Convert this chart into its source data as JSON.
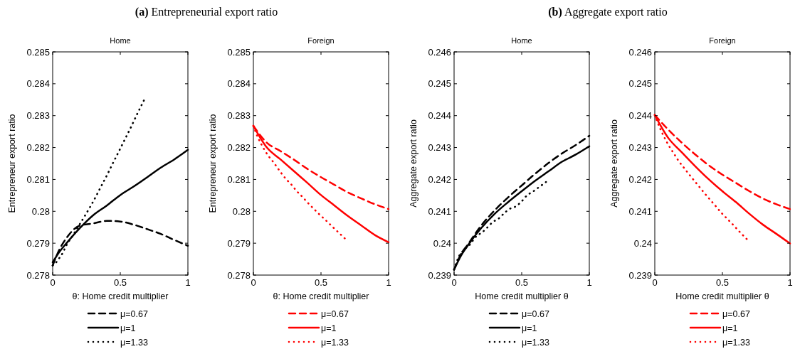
{
  "chart_data": [
    {
      "type": "line",
      "title": "Home",
      "annotations": [
        "(a) Entrepreneurial export ratio"
      ],
      "xlabel": "θ: Home credit multiplier",
      "ylabel": "Entrepreneur export ratio",
      "xlim": [
        0,
        1
      ],
      "xticks": [
        0,
        0.5,
        1
      ],
      "ylim": [
        0.278,
        0.285
      ],
      "yticks": [
        0.278,
        0.279,
        0.28,
        0.281,
        0.282,
        0.283,
        0.284,
        0.285
      ],
      "grid": false,
      "legend": "bottom",
      "series": [
        {
          "name": "μ=0.67",
          "color": "#000000",
          "line_style": "dashed",
          "x": [
            0,
            0.05,
            0.1,
            0.2,
            0.3,
            0.4,
            0.5,
            0.6,
            0.7,
            0.8,
            0.9,
            1
          ],
          "values": [
            0.2783,
            0.2788,
            0.27915,
            0.27955,
            0.27962,
            0.2797,
            0.27968,
            0.27958,
            0.27944,
            0.27929,
            0.2791,
            0.27892
          ]
        },
        {
          "name": "μ=1",
          "color": "#000000",
          "line_style": "solid",
          "x": [
            0,
            0.05,
            0.1,
            0.2,
            0.3,
            0.4,
            0.5,
            0.6,
            0.7,
            0.8,
            0.9,
            1
          ],
          "values": [
            0.2784,
            0.27873,
            0.27899,
            0.27947,
            0.27988,
            0.28018,
            0.28051,
            0.28078,
            0.28107,
            0.28137,
            0.28163,
            0.28193
          ]
        },
        {
          "name": "μ=1.33",
          "color": "#000000",
          "line_style": "dotted",
          "x": [
            0,
            0.024,
            0.05,
            0.075,
            0.1,
            0.15,
            0.198,
            0.241,
            0.28,
            0.319,
            0.358,
            0.4,
            0.442,
            0.486,
            0.532,
            0.579,
            0.626,
            0.675
          ],
          "values": [
            0.2783,
            0.27839,
            0.27854,
            0.2787,
            0.27892,
            0.27925,
            0.27958,
            0.27988,
            0.28016,
            0.28046,
            0.28078,
            0.28112,
            0.28148,
            0.28185,
            0.28224,
            0.28264,
            0.28306,
            0.28348
          ]
        }
      ]
    },
    {
      "type": "line",
      "title": "Foreign",
      "xlabel": "θ: Home credit multiplier",
      "ylabel": "Entrepreneur export ratio",
      "xlim": [
        0,
        1
      ],
      "xticks": [
        0,
        0.5,
        1
      ],
      "ylim": [
        0.278,
        0.285
      ],
      "yticks": [
        0.278,
        0.279,
        0.28,
        0.281,
        0.282,
        0.283,
        0.284,
        0.285
      ],
      "grid": false,
      "legend": "bottom",
      "series": [
        {
          "name": "μ=0.67",
          "color": "#ff0000",
          "line_style": "dashed",
          "x": [
            0,
            0.1,
            0.2,
            0.3,
            0.4,
            0.5,
            0.6,
            0.7,
            0.8,
            0.9,
            1
          ],
          "values": [
            0.28268,
            0.28215,
            0.28189,
            0.28162,
            0.28133,
            0.28107,
            0.28083,
            0.28059,
            0.2804,
            0.28022,
            0.28007
          ]
        },
        {
          "name": "μ=1",
          "color": "#ff0000",
          "line_style": "solid",
          "x": [
            0,
            0.1,
            0.2,
            0.3,
            0.4,
            0.5,
            0.6,
            0.7,
            0.8,
            0.9,
            1
          ],
          "values": [
            0.28268,
            0.282,
            0.28163,
            0.28126,
            0.28089,
            0.28051,
            0.28018,
            0.27985,
            0.27955,
            0.27925,
            0.27903
          ]
        },
        {
          "name": "μ=1.33",
          "color": "#ff0000",
          "line_style": "dotted",
          "x": [
            0,
            0.032,
            0.058,
            0.109,
            0.143,
            0.174,
            0.206,
            0.242,
            0.283,
            0.319,
            0.361,
            0.402,
            0.446,
            0.489,
            0.535,
            0.581,
            0.629,
            0.676
          ],
          "values": [
            0.28268,
            0.28233,
            0.28211,
            0.28175,
            0.28157,
            0.28139,
            0.2812,
            0.28101,
            0.28083,
            0.28064,
            0.28046,
            0.28027,
            0.28008,
            0.2799,
            0.27972,
            0.27953,
            0.27934,
            0.27915
          ]
        }
      ]
    },
    {
      "type": "line",
      "title": "Home",
      "annotations": [
        "(b) Aggregate export ratio"
      ],
      "xlabel": "Home credit multiplier θ",
      "ylabel": "Aggregate export ratio",
      "xlim": [
        0,
        1
      ],
      "xticks": [
        0,
        0.5,
        1
      ],
      "ylim": [
        0.239,
        0.246
      ],
      "yticks": [
        0.239,
        0.24,
        0.241,
        0.242,
        0.243,
        0.244,
        0.245,
        0.246
      ],
      "grid": false,
      "legend": "bottom",
      "series": [
        {
          "name": "μ=0.67",
          "color": "#000000",
          "line_style": "dashed",
          "x": [
            0,
            0.05,
            0.1,
            0.2,
            0.3,
            0.4,
            0.5,
            0.6,
            0.7,
            0.8,
            0.9,
            1
          ],
          "values": [
            0.23917,
            0.23965,
            0.23995,
            0.24055,
            0.24103,
            0.24144,
            0.24181,
            0.24218,
            0.24252,
            0.24282,
            0.24308,
            0.24337
          ]
        },
        {
          "name": "μ=1",
          "color": "#000000",
          "line_style": "solid",
          "x": [
            0,
            0.05,
            0.1,
            0.2,
            0.3,
            0.4,
            0.5,
            0.6,
            0.7,
            0.8,
            0.9,
            1
          ],
          "values": [
            0.23917,
            0.2396,
            0.23992,
            0.24047,
            0.24092,
            0.24129,
            0.24163,
            0.24196,
            0.24226,
            0.24256,
            0.24278,
            0.24304
          ]
        },
        {
          "name": "μ=1.33",
          "color": "#000000",
          "line_style": "dotted",
          "x": [
            0,
            0.035,
            0.076,
            0.116,
            0.156,
            0.213,
            0.25,
            0.285,
            0.329,
            0.366,
            0.408,
            0.45,
            0.495,
            0.539,
            0.587,
            0.635,
            0.68
          ],
          "values": [
            0.23917,
            0.23958,
            0.2398,
            0.23995,
            0.24018,
            0.24036,
            0.24051,
            0.24066,
            0.24077,
            0.24092,
            0.24107,
            0.24114,
            0.24129,
            0.2415,
            0.24163,
            0.24178,
            0.24192
          ]
        }
      ]
    },
    {
      "type": "line",
      "title": "Foreign",
      "xlabel": "Home credit multiplier θ",
      "ylabel": "Aggregate export ratio",
      "xlim": [
        0,
        1
      ],
      "xticks": [
        0,
        0.5,
        1
      ],
      "ylim": [
        0.239,
        0.246
      ],
      "yticks": [
        0.239,
        0.24,
        0.241,
        0.242,
        0.243,
        0.244,
        0.245,
        0.246
      ],
      "grid": false,
      "legend": "bottom",
      "series": [
        {
          "name": "μ=0.67",
          "color": "#ff0000",
          "line_style": "dashed",
          "x": [
            0,
            0.1,
            0.2,
            0.3,
            0.4,
            0.5,
            0.6,
            0.7,
            0.8,
            0.9,
            1
          ],
          "values": [
            0.24402,
            0.24356,
            0.24315,
            0.24278,
            0.24244,
            0.24215,
            0.24189,
            0.24163,
            0.2414,
            0.24122,
            0.24107
          ]
        },
        {
          "name": "μ=1",
          "color": "#ff0000",
          "line_style": "solid",
          "x": [
            0,
            0.1,
            0.2,
            0.3,
            0.4,
            0.5,
            0.6,
            0.7,
            0.8,
            0.9,
            1
          ],
          "values": [
            0.24402,
            0.2433,
            0.24285,
            0.24241,
            0.242,
            0.24163,
            0.24129,
            0.24092,
            0.24058,
            0.24029,
            0.23999
          ]
        },
        {
          "name": "μ=1.33",
          "color": "#ff0000",
          "line_style": "dotted",
          "x": [
            0,
            0.037,
            0.06,
            0.112,
            0.143,
            0.173,
            0.211,
            0.248,
            0.286,
            0.327,
            0.367,
            0.408,
            0.451,
            0.493,
            0.539,
            0.585,
            0.631,
            0.68
          ],
          "values": [
            0.24402,
            0.24362,
            0.24341,
            0.243,
            0.2428,
            0.2426,
            0.24239,
            0.24219,
            0.24199,
            0.24178,
            0.24157,
            0.24137,
            0.24116,
            0.24095,
            0.24075,
            0.24055,
            0.24034,
            0.24013
          ]
        }
      ]
    }
  ]
}
